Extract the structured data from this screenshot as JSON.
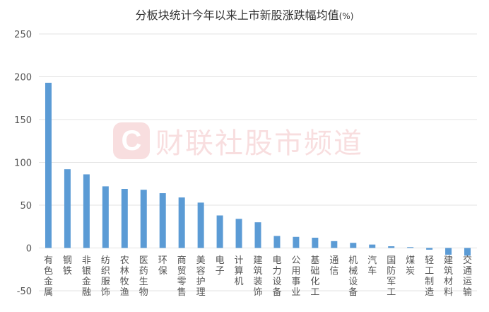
{
  "chart_data": {
    "type": "bar",
    "title": "分板块统计今年以来上市新股涨跌幅均值",
    "title_unit": "(%)",
    "ylim": [
      -50,
      250
    ],
    "yticks": [
      -50,
      0,
      50,
      100,
      150,
      200,
      250
    ],
    "grid": true,
    "bar_color": "#5b9bd5",
    "categories": [
      "有色金属",
      "钢铁",
      "非银金融",
      "纺织服饰",
      "农林牧渔",
      "医药生物",
      "环保",
      "商贸零售",
      "美容护理",
      "电子",
      "计算机",
      "建筑装饰",
      "电力设备",
      "公用事业",
      "基础化工",
      "通信",
      "机械设备",
      "汽车",
      "国防军工",
      "煤炭",
      "轻工制造",
      "建筑材料",
      "交通运输"
    ],
    "values": [
      193,
      92,
      86,
      72,
      69,
      68,
      64,
      59,
      53,
      38,
      34,
      30,
      14,
      13,
      12,
      8,
      6,
      4,
      2,
      1,
      -2,
      -8,
      -9
    ]
  },
  "watermark": {
    "logo_letter": "C",
    "text": "财联社股市频道"
  }
}
